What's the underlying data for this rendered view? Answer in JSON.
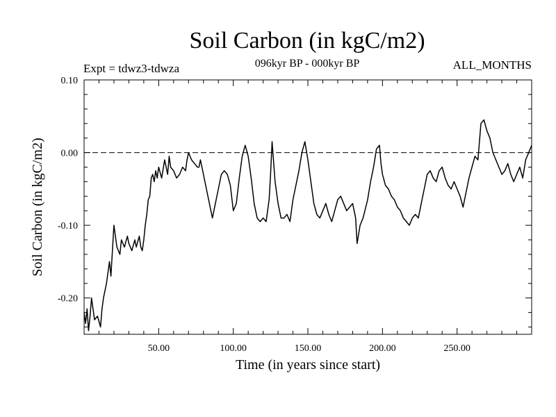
{
  "header": {
    "title": "Soil Carbon (in kgC/m2)",
    "subtitle": "096kyr BP - 000kyr BP",
    "experiment": "Expt = tdwz3-tdwza",
    "period": "ALL_MONTHS"
  },
  "chart_data": {
    "type": "line",
    "title": "Soil Carbon (in kgC/m2)",
    "xlabel": "Time (in years since start)",
    "ylabel": "Soil Carbon (in kgC/m2)",
    "xlim": [
      0,
      300
    ],
    "ylim": [
      -0.25,
      0.1
    ],
    "x_ticks": [
      50,
      100,
      150,
      200,
      250
    ],
    "x_tick_labels": [
      "50.00",
      "100.00",
      "150.00",
      "200.00",
      "250.00"
    ],
    "y_ticks": [
      0.1,
      0.0,
      -0.1,
      -0.2
    ],
    "y_tick_labels": [
      "0.10",
      "0.00",
      "-0.10",
      "-0.20"
    ],
    "reference_line": {
      "y": 0.0,
      "style": "dashed"
    },
    "grid": false,
    "legend": "none",
    "line_color": "#000000",
    "series": [
      {
        "x": [
          0,
          1,
          2,
          3,
          4,
          5,
          7,
          9,
          11,
          12,
          13,
          15,
          17,
          18,
          20,
          22,
          24,
          25,
          27,
          29,
          30,
          32,
          34,
          35,
          37,
          38,
          39,
          40,
          41,
          42,
          43,
          44,
          45,
          46,
          47,
          48,
          49,
          50,
          52,
          54,
          56,
          57,
          58,
          60,
          62,
          64,
          66,
          68,
          69,
          70,
          72,
          74,
          76,
          77,
          78,
          80,
          82,
          84,
          86,
          88,
          90,
          92,
          94,
          96,
          98,
          100,
          102,
          104,
          106,
          108,
          110,
          112,
          114,
          116,
          118,
          120,
          122,
          124,
          125,
          126,
          128,
          130,
          132,
          134,
          136,
          138,
          140,
          142,
          144,
          146,
          148,
          150,
          152,
          154,
          156,
          158,
          160,
          162,
          164,
          166,
          168,
          170,
          172,
          174,
          176,
          178,
          180,
          182,
          183,
          185,
          187,
          190,
          192,
          194,
          196,
          198,
          199,
          200,
          202,
          204,
          206,
          208,
          210,
          212,
          214,
          216,
          218,
          220,
          222,
          224,
          226,
          228,
          230,
          232,
          234,
          236,
          238,
          240,
          242,
          244,
          246,
          248,
          250,
          252,
          254,
          256,
          258,
          260,
          262,
          264,
          266,
          268,
          270,
          272,
          274,
          276,
          278,
          280,
          282,
          284,
          286,
          288,
          290,
          292,
          294,
          296,
          298,
          300
        ],
        "y": [
          -0.22,
          -0.235,
          -0.215,
          -0.245,
          -0.225,
          -0.2,
          -0.23,
          -0.225,
          -0.24,
          -0.215,
          -0.2,
          -0.18,
          -0.15,
          -0.17,
          -0.1,
          -0.13,
          -0.14,
          -0.12,
          -0.13,
          -0.115,
          -0.125,
          -0.135,
          -0.12,
          -0.13,
          -0.115,
          -0.13,
          -0.135,
          -0.12,
          -0.1,
          -0.085,
          -0.065,
          -0.06,
          -0.035,
          -0.03,
          -0.04,
          -0.025,
          -0.035,
          -0.02,
          -0.035,
          -0.01,
          -0.03,
          -0.005,
          -0.02,
          -0.025,
          -0.035,
          -0.03,
          -0.02,
          -0.025,
          -0.01,
          0.0,
          -0.01,
          -0.015,
          -0.02,
          -0.02,
          -0.01,
          -0.03,
          -0.05,
          -0.07,
          -0.09,
          -0.07,
          -0.05,
          -0.03,
          -0.025,
          -0.03,
          -0.045,
          -0.08,
          -0.07,
          -0.035,
          -0.005,
          0.01,
          -0.005,
          -0.035,
          -0.07,
          -0.09,
          -0.095,
          -0.09,
          -0.095,
          -0.065,
          -0.03,
          0.015,
          -0.04,
          -0.07,
          -0.09,
          -0.09,
          -0.085,
          -0.095,
          -0.065,
          -0.045,
          -0.025,
          0.0,
          0.015,
          -0.01,
          -0.04,
          -0.07,
          -0.085,
          -0.09,
          -0.08,
          -0.07,
          -0.085,
          -0.095,
          -0.08,
          -0.065,
          -0.06,
          -0.07,
          -0.08,
          -0.075,
          -0.07,
          -0.09,
          -0.125,
          -0.1,
          -0.09,
          -0.065,
          -0.04,
          -0.02,
          0.005,
          0.01,
          -0.015,
          -0.03,
          -0.045,
          -0.05,
          -0.06,
          -0.065,
          -0.075,
          -0.08,
          -0.09,
          -0.095,
          -0.1,
          -0.09,
          -0.085,
          -0.09,
          -0.07,
          -0.05,
          -0.03,
          -0.025,
          -0.035,
          -0.04,
          -0.025,
          -0.02,
          -0.035,
          -0.045,
          -0.05,
          -0.04,
          -0.05,
          -0.06,
          -0.075,
          -0.055,
          -0.035,
          -0.02,
          -0.005,
          -0.01,
          0.04,
          0.045,
          0.03,
          0.02,
          0.0,
          -0.01,
          -0.02,
          -0.03,
          -0.025,
          -0.015,
          -0.03,
          -0.04,
          -0.03,
          -0.02,
          -0.035,
          -0.01,
          0.0,
          0.01
        ]
      }
    ]
  }
}
